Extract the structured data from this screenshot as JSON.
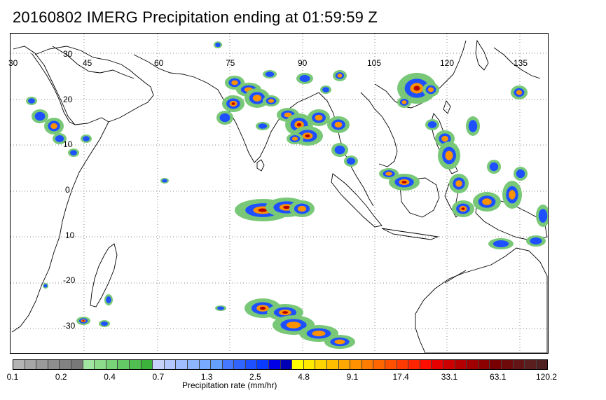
{
  "title": "20160802 IMERG Precipitation ending at 01:59:59 Z",
  "map": {
    "lon_labels": [
      "30",
      "45",
      "60",
      "75",
      "90",
      "105",
      "120",
      "135"
    ],
    "lat_labels": [
      "30",
      "20",
      "10",
      "0",
      "10",
      "-20",
      "-30"
    ],
    "gridline_color": "#888888",
    "coastline_color": "#000000"
  },
  "colorbar": {
    "title": "Precipitation rate (mm/hr)",
    "tick_labels": [
      "0.1",
      "0.2",
      "0.4",
      "0.7",
      "1.3",
      "2.5",
      "4.8",
      "9.1",
      "17.4",
      "33.1",
      "63.1",
      "120.2"
    ],
    "colors": [
      "#b4b4b4",
      "#a6a6a6",
      "#9a9a9a",
      "#8e8e8e",
      "#828282",
      "#787878",
      "#a0e6a0",
      "#8cdc8c",
      "#78d278",
      "#64c864",
      "#50be50",
      "#3cb43c",
      "#c8d2ff",
      "#b4c8ff",
      "#a0beff",
      "#8cb4ff",
      "#78aaff",
      "#64a0ff",
      "#4678ff",
      "#3264ff",
      "#1e50ff",
      "#0a3cff",
      "#0000e6",
      "#0000b4",
      "#ffff00",
      "#ffea00",
      "#ffd400",
      "#ffbe00",
      "#ffa800",
      "#ff9200",
      "#ff7c00",
      "#ff6600",
      "#ff5000",
      "#ff3a00",
      "#ff2400",
      "#ff0e00",
      "#e60000",
      "#cc0000",
      "#b40000",
      "#a00000",
      "#8c0000",
      "#780000",
      "#6e0a0a",
      "#641414",
      "#5a1e1e",
      "#502020"
    ]
  },
  "legend_colors": {
    "light": "#78c878",
    "moderate": "#1e50ff",
    "heavy": "#ff9200",
    "extreme": "#b40000"
  }
}
